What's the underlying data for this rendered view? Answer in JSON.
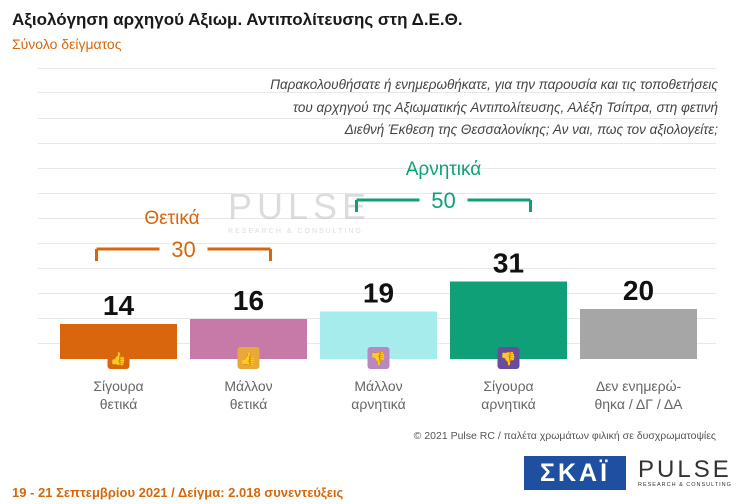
{
  "title": "Αξιολόγηση αρχηγού Αξιωμ. Αντιπολίτευσης στη Δ.Ε.Θ.",
  "subtitle": "Σύνολο δείγματος",
  "question": [
    "Παρακολουθήσατε ή ενημερωθήκατε, για την παρουσία και τις τοποθετήσεις",
    "του αρχηγού της Αξιωματικής Αντιπολίτευσης, Αλέξη Τσίπρα, στη φετινή",
    "Διεθνή Έκθεση της Θεσσαλονίκης; Αν ναι, πως τον αξιολογείτε;"
  ],
  "chart_data": {
    "type": "bar",
    "categories": [
      [
        "Σίγουρα",
        "θετικά"
      ],
      [
        "Μάλλον",
        "θετικά"
      ],
      [
        "Μάλλον",
        "αρνητικά"
      ],
      [
        "Σίγουρα",
        "αρνητικά"
      ],
      [
        "Δεν ενημερώ-",
        "θηκα / ΔΓ / ΔΑ"
      ]
    ],
    "values": [
      14,
      16,
      19,
      31,
      20
    ],
    "colors": [
      "#d9650c",
      "#c77aa8",
      "#a6ecec",
      "#0fa078",
      "#a6a6a6"
    ],
    "icons": [
      "thumbs-up-double-icon",
      "thumbs-up-icon",
      "thumbs-down-icon",
      "thumbs-down-double-icon",
      null
    ],
    "icon_colors": [
      "#d9650c",
      "#e8a83a",
      "#b889c0",
      "#6a4c9c",
      null
    ],
    "groups": [
      {
        "label": "Θετικά",
        "value": "30",
        "color": "#d9650c",
        "from": 0,
        "to": 1
      },
      {
        "label": "Αρνητικά",
        "value": "50",
        "color": "#0fa078",
        "from": 2,
        "to": 3
      }
    ]
  },
  "credit": "© 2021 Pulse RC  /  παλέτα χρωμάτων φιλική σε δυσχρωματοψίες",
  "footer": "19 - 21 Σεπτεμβρίου 2021  /  Δείγμα:  2.018 συνεντεύξεις",
  "watermark": {
    "main": "PULSE",
    "sub": "RESEARCH & CONSULTING"
  },
  "logos": {
    "skai": "ΣΚΑΪ",
    "pulse": "PULSE",
    "pulse_sub": "RESEARCH & CONSULTING"
  }
}
